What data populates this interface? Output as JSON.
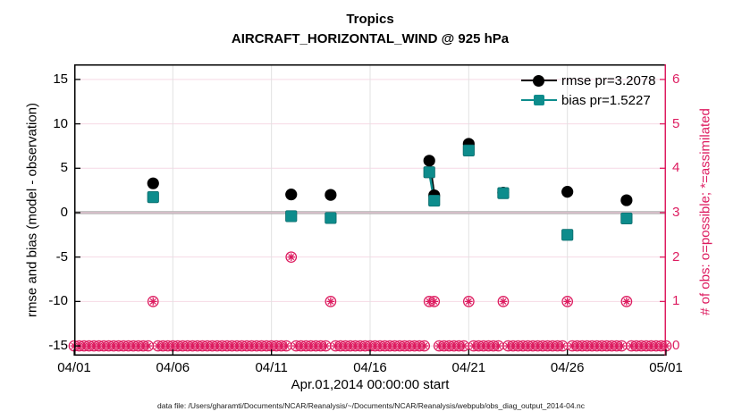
{
  "figure": {
    "title": "Tropics",
    "subtitle": "AIRCRAFT_HORIZONTAL_WIND @ 925 hPa"
  },
  "axes": {
    "left": {
      "label": "rmse and bias (model - observation)",
      "ticks": [
        15,
        10,
        5,
        0,
        -5,
        -10,
        -15
      ]
    },
    "right": {
      "label": "# of obs: o=possible; *=assimilated",
      "ticks": [
        6,
        5,
        4,
        3,
        2,
        1,
        0
      ]
    },
    "x": {
      "label": "Apr.01,2014 00:00:00 start",
      "tick_labels": [
        "04/01",
        "04/06",
        "04/11",
        "04/16",
        "04/21",
        "04/26",
        "05/01"
      ],
      "tick_days": [
        0,
        5,
        10,
        15,
        20,
        25,
        30
      ]
    }
  },
  "legend": {
    "items": [
      {
        "label": "rmse pr=3.2078",
        "marker": "circle",
        "color": "#000000"
      },
      {
        "label": "bias pr=1.5227",
        "marker": "square",
        "color": "#0d8c8c"
      }
    ]
  },
  "footer": {
    "text": "data file: /Users/gharamti/Documents/NCAR/Reanalysis/~/Documents/NCAR/Reanalysis/webpub/obs_diag_output_2014-04.nc"
  },
  "colors": {
    "black": "#000000",
    "teal": "#0d8c8c",
    "teal_edge": "#0a6b6b",
    "pink": "#dd1c60",
    "grid_pink": "#f6d9e5",
    "grid_gray": "#e2e2e2",
    "zero_line_gray": "#b0b0b0",
    "zero_line_pink": "#eec8d8"
  },
  "chart_data": {
    "type": "line",
    "title": "Tropics",
    "subtitle": "AIRCRAFT_HORIZONTAL_WIND @ 925 hPa",
    "xlabel": "Apr.01,2014 00:00:00 start",
    "ylabel_left": "rmse and bias (model - observation)",
    "ylabel_right": "# of obs: o=possible; *=assimilated",
    "grid": true,
    "legend_position": "top-right-inside",
    "x_lim_days": [
      0,
      30
    ],
    "left_ylim": [
      -16.1,
      16.7
    ],
    "right_ylim": [
      -0.22,
      6.34
    ],
    "x_days_since_apr01": [
      4.0,
      11.0,
      13.0,
      18.0,
      18.25,
      20.0,
      21.75,
      25.0,
      28.0
    ],
    "x_dates": [
      "04/05",
      "04/12",
      "04/14",
      "04/19 00Z",
      "04/19 06Z",
      "04/21",
      "04/22 18Z",
      "04/26",
      "04/29"
    ],
    "series": [
      {
        "name": "rmse pr=3.2078",
        "marker": "circle",
        "color": "#000000",
        "values": [
          3.3,
          2.05,
          2.0,
          5.85,
          1.95,
          7.75,
          2.25,
          2.35,
          1.4
        ]
      },
      {
        "name": "bias pr=1.5227",
        "marker": "square",
        "color": "#0d8c8c",
        "values": [
          1.75,
          -0.4,
          -0.6,
          4.55,
          1.35,
          7.0,
          2.2,
          -2.5,
          -0.65
        ]
      }
    ],
    "connected_segments": [
      [
        3,
        4
      ]
    ],
    "obs_counts_right_axis": {
      "possible": [
        1,
        2,
        1,
        1,
        1,
        1,
        1,
        1,
        1
      ],
      "assimilated": [
        1,
        2,
        1,
        1,
        1,
        1,
        1,
        1,
        1
      ]
    },
    "zero_obs_days": {
      "start": 0,
      "end": 30,
      "step": 0.25,
      "note": "all other 6-hourly times have 0 possible and 0 assimilated obs"
    }
  }
}
